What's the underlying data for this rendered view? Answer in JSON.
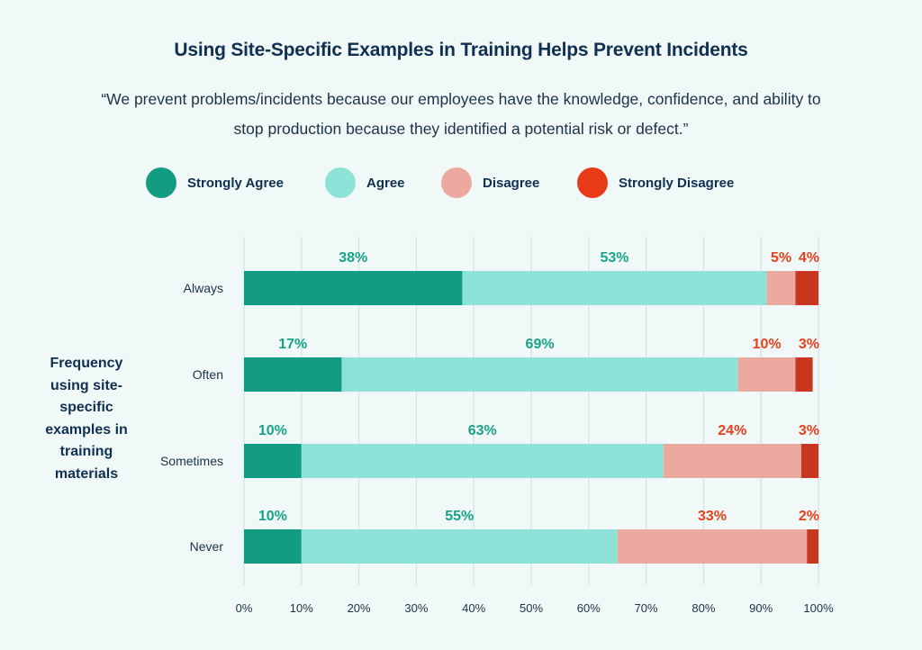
{
  "title": "Using Site-Specific Examples in Training Helps Prevent Incidents",
  "quote": "“We prevent problems/incidents because our employees have the knowledge, confidence, and ability to stop production because they identified a potential risk or defect.”",
  "legend": [
    {
      "label": "Strongly Agree",
      "color": "#129c82"
    },
    {
      "label": "Agree",
      "color": "#8de3d8"
    },
    {
      "label": "Disagree",
      "color": "#eba99f"
    },
    {
      "label": "Strongly Disagree",
      "color": "#e93a18"
    }
  ],
  "y_axis_label": "Frequency using site-specific examples in training materials",
  "chart_data": {
    "type": "bar",
    "orientation": "horizontal",
    "stacked": true,
    "categories": [
      "Always",
      "Often",
      "Sometimes",
      "Never"
    ],
    "series": [
      {
        "name": "Strongly Agree",
        "values": [
          38,
          17,
          10,
          10
        ],
        "color": "#129c82",
        "label_color": "#17a389"
      },
      {
        "name": "Agree",
        "values": [
          53,
          69,
          63,
          55
        ],
        "color": "#8de3d8",
        "label_color": "#17a389"
      },
      {
        "name": "Disagree",
        "values": [
          5,
          10,
          24,
          33
        ],
        "color": "#eba99f",
        "label_color": "#e8401c"
      },
      {
        "name": "Strongly Disagree",
        "values": [
          4,
          3,
          3,
          2
        ],
        "color": "#c8381f",
        "label_color": "#e8401c"
      }
    ],
    "value_suffix": "%",
    "xlim": [
      0,
      100
    ],
    "xticks": [
      0,
      10,
      20,
      30,
      40,
      50,
      60,
      70,
      80,
      90,
      100
    ],
    "xtick_labels": [
      "0%",
      "10%",
      "20%",
      "30%",
      "40%",
      "50%",
      "60%",
      "70%",
      "80%",
      "90%",
      "100%"
    ],
    "ylabel": "Frequency using site-specific examples in training materials",
    "grid": true,
    "legend_position": "top"
  }
}
